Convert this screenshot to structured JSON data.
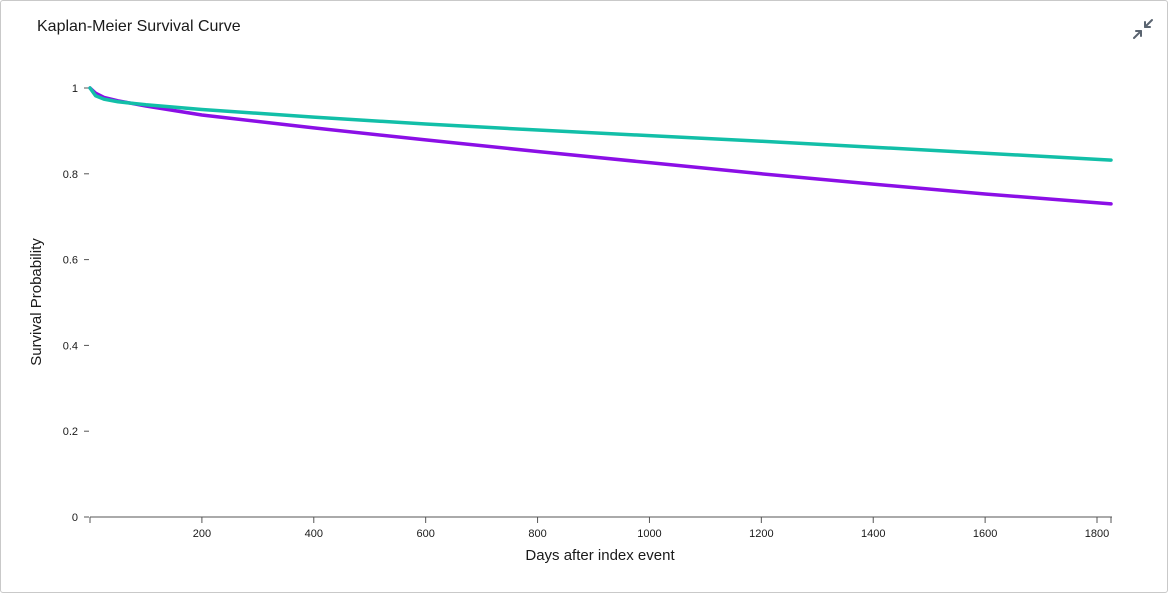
{
  "panel": {
    "title": "Kaplan-Meier Survival Curve",
    "collapse_icon": "collapse-arrows-icon"
  },
  "colors": {
    "series_purple": "#8b0fe6",
    "series_teal": "#12bfa8",
    "axis": "#555555"
  },
  "chart_data": {
    "type": "line",
    "title": "Kaplan-Meier Survival Curve",
    "xlabel": "Days after index event",
    "ylabel": "Survival Probability",
    "xlim": [
      0,
      1825
    ],
    "ylim": [
      0,
      1
    ],
    "x_ticks": [
      200,
      400,
      600,
      800,
      1000,
      1200,
      1400,
      1600,
      1800
    ],
    "y_ticks": [
      0,
      0.2,
      0.4,
      0.6,
      0.8,
      1
    ],
    "y_tick_labels": [
      "0",
      "0.2",
      "0.4",
      "0.6",
      "0.8",
      "1"
    ],
    "grid": false,
    "series": [
      {
        "color": "#8b0fe6",
        "x": [
          0,
          10,
          25,
          50,
          100,
          200,
          400,
          600,
          800,
          1000,
          1200,
          1400,
          1600,
          1825
        ],
        "y": [
          1.0,
          0.988,
          0.978,
          0.97,
          0.958,
          0.937,
          0.907,
          0.879,
          0.852,
          0.826,
          0.8,
          0.776,
          0.753,
          0.73
        ]
      },
      {
        "color": "#12bfa8",
        "x": [
          0,
          10,
          25,
          50,
          100,
          200,
          400,
          600,
          800,
          1000,
          1200,
          1400,
          1600,
          1825
        ],
        "y": [
          1.0,
          0.982,
          0.974,
          0.968,
          0.961,
          0.95,
          0.932,
          0.916,
          0.902,
          0.889,
          0.876,
          0.862,
          0.848,
          0.832
        ]
      }
    ]
  }
}
